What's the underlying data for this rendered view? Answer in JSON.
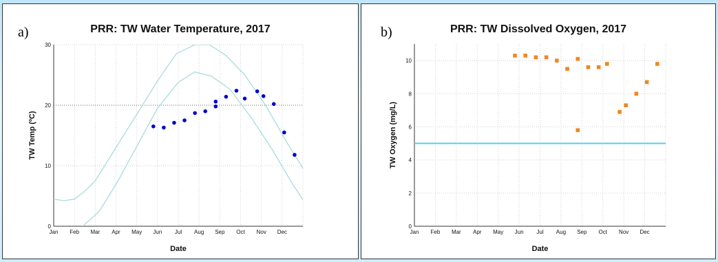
{
  "colors": {
    "temp_points": "#0000cc",
    "band": "#a8dcdc",
    "oxygen_points": "#ee8822",
    "threshold": "#55ccee"
  },
  "panels": [
    {
      "letter": "a)"
    },
    {
      "letter": "b)"
    }
  ],
  "chart_data": [
    {
      "type": "scatter",
      "title": "PRR: TW Water Temperature, 2017",
      "xlabel": "Date",
      "ylabel": "TW Temp (ºC)",
      "ylim": [
        0,
        30
      ],
      "yticks": [
        0,
        10,
        20,
        30
      ],
      "xlim": [
        0,
        12
      ],
      "xticks": [
        "Jan",
        "Feb",
        "Mar",
        "Apr",
        "May",
        "Jun",
        "Jul",
        "Aug",
        "Sep",
        "Oct",
        "Nov",
        "Dec"
      ],
      "grid": true,
      "series": [
        {
          "values": [
            [
              4.8,
              16.5
            ],
            [
              5.3,
              16.3
            ],
            [
              5.8,
              17.1
            ],
            [
              6.3,
              17.5
            ],
            [
              6.8,
              18.7
            ],
            [
              7.3,
              19.0
            ],
            [
              7.8,
              19.8
            ],
            [
              7.8,
              20.6
            ],
            [
              8.3,
              21.4
            ],
            [
              8.8,
              22.4
            ],
            [
              9.2,
              21.1
            ],
            [
              9.8,
              22.3
            ],
            [
              10.1,
              21.5
            ],
            [
              10.6,
              20.2
            ],
            [
              11.1,
              15.5
            ],
            [
              11.6,
              11.8
            ]
          ]
        }
      ],
      "reference_curves": [
        [
          [
            0,
            4.5
          ],
          [
            0.5,
            4.2
          ],
          [
            1,
            4.5
          ],
          [
            1.5,
            5.8
          ],
          [
            2,
            7.5
          ],
          [
            3,
            13
          ],
          [
            4,
            18.5
          ],
          [
            5,
            24
          ],
          [
            5.9,
            28.5
          ],
          [
            6.8,
            30
          ],
          [
            7.5,
            30
          ],
          [
            8.3,
            28.2
          ],
          [
            9.2,
            25
          ],
          [
            10.2,
            20
          ],
          [
            11.2,
            14
          ],
          [
            12.2,
            8.5
          ],
          [
            13,
            5
          ]
        ],
        [
          [
            1.4,
            0
          ],
          [
            2.2,
            2.5
          ],
          [
            3.1,
            7.5
          ],
          [
            4,
            13.2
          ],
          [
            5,
            19.5
          ],
          [
            6,
            23.8
          ],
          [
            6.8,
            25.5
          ],
          [
            7.6,
            24.8
          ],
          [
            8.5,
            22.6
          ],
          [
            9.5,
            18
          ],
          [
            10.5,
            12.8
          ],
          [
            11.5,
            7
          ],
          [
            12.3,
            2.8
          ],
          [
            13,
            0
          ]
        ]
      ]
    },
    {
      "type": "scatter",
      "title": "PRR: TW Dissolved Oxygen, 2017",
      "xlabel": "Date",
      "ylabel": "TW Oxygen (mg/L)",
      "ylim": [
        0,
        11
      ],
      "yticks": [
        0,
        2,
        4,
        6,
        8,
        10
      ],
      "xlim": [
        0,
        12
      ],
      "xticks": [
        "Jan",
        "Feb",
        "Mar",
        "Apr",
        "May",
        "Jun",
        "Jul",
        "Aug",
        "Sep",
        "Oct",
        "Nov",
        "Dec"
      ],
      "grid": true,
      "threshold": 5,
      "series": [
        {
          "values": [
            [
              4.8,
              10.3
            ],
            [
              5.3,
              10.3
            ],
            [
              5.8,
              10.2
            ],
            [
              6.3,
              10.2
            ],
            [
              6.8,
              10.0
            ],
            [
              7.3,
              9.5
            ],
            [
              7.8,
              10.1
            ],
            [
              7.8,
              5.8
            ],
            [
              8.3,
              9.6
            ],
            [
              8.8,
              9.6
            ],
            [
              9.2,
              9.8
            ],
            [
              9.8,
              6.9
            ],
            [
              10.1,
              7.3
            ],
            [
              10.6,
              8.0
            ],
            [
              11.1,
              8.7
            ],
            [
              11.6,
              9.8
            ]
          ]
        }
      ]
    }
  ]
}
